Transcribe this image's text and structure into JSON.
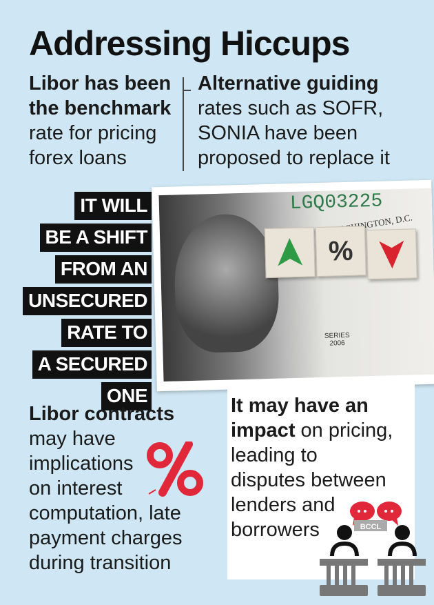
{
  "title": "Addressing Hiccups",
  "left_top": {
    "bold_lines": [
      "Libor has been",
      "the benchmark"
    ],
    "bold_tail_after": "",
    "lines": [
      "rate for pricing",
      "forex loans"
    ]
  },
  "right_top": {
    "bold_lines": [
      "Alternative guiding"
    ],
    "lines": [
      "rates such as SOFR,",
      "SONIA have been",
      "proposed to replace it"
    ]
  },
  "quote_lines": [
    "IT WILL",
    "BE A SHIFT",
    "FROM AN",
    "UNSECURED",
    "RATE TO",
    "A SECURED",
    "ONE"
  ],
  "photo": {
    "serial": "LGQ03225",
    "city": "WASHINGTON, D.C.",
    "series": "SERIES",
    "series_year": "2006",
    "cube_symbol": "%"
  },
  "bottom_left": {
    "bold_lines": [
      "Libor contracts"
    ],
    "lines": [
      "may have",
      "implications",
      "on interest",
      "computation, late",
      "payment charges",
      "during transition"
    ]
  },
  "bottom_right": {
    "bold_line": "It may have an",
    "bold_word": "impact",
    "rest_of_line": " on pricing,",
    "lines": [
      "leading to",
      "disputes between",
      "lenders and",
      "borrowers"
    ]
  },
  "watermark": "BCCL",
  "colors": {
    "background": "#cfe7f4",
    "accent_red": "#e0283a",
    "arrow_green": "#2e9a46",
    "arrow_red": "#d92430",
    "label_bg": "#111111"
  },
  "icons": [
    "percent-icon",
    "speech-bubble-icon",
    "person-at-podium-icon",
    "arrow-up-icon",
    "arrow-down-icon"
  ]
}
